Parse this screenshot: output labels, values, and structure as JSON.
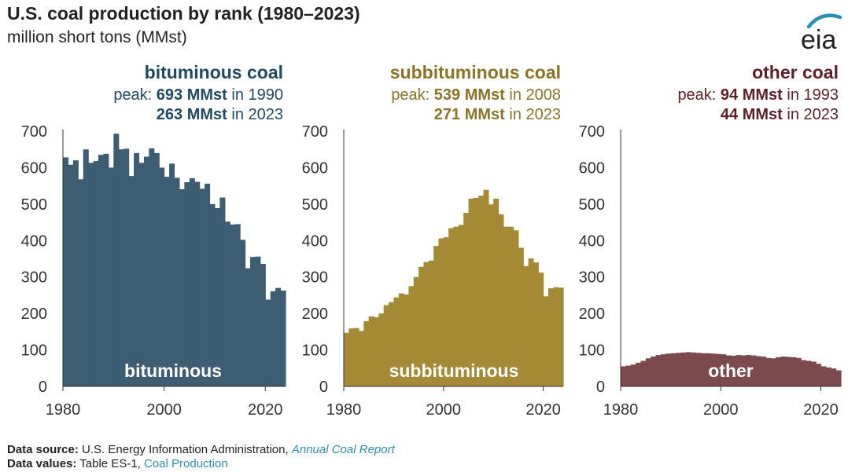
{
  "header": {
    "title": "U.S. coal production by rank (1980–2023)",
    "subtitle": "million short tons (MMst)",
    "logo_text": "eia"
  },
  "footer": {
    "source_label": "Data source:",
    "source_text": "U.S. Energy Information Administration,",
    "source_link": "Annual Coal Report",
    "values_label": "Data values:",
    "values_text": "Table ES-1,",
    "values_link": "Coal Production"
  },
  "colors": {
    "bituminous": "#3d5d73",
    "subbituminous": "#a58a35",
    "other": "#7b4a4c",
    "bituminous_text": "#1f4a63",
    "subbituminous_text": "#8c7424",
    "other_text": "#5c1f27",
    "axis": "#333333",
    "link": "#2a8fb5"
  },
  "chart_data": [
    {
      "type": "area",
      "series_name": "bituminous coal",
      "annotation_prefix": "peak:",
      "annotation_peak_value": "693 MMst",
      "annotation_peak_year": "in 1990",
      "annotation_latest_value": "263 MMst",
      "annotation_latest_year": "in 2023",
      "inner_label": "bituminous",
      "ylim": [
        0,
        700
      ],
      "yticks": [
        "0",
        "100",
        "200",
        "300",
        "400",
        "500",
        "600",
        "700"
      ],
      "xticks": [
        "1980",
        "2000",
        "2020"
      ],
      "x": [
        1980,
        1981,
        1982,
        1983,
        1984,
        1985,
        1986,
        1987,
        1988,
        1989,
        1990,
        1991,
        1992,
        1993,
        1994,
        1995,
        1996,
        1997,
        1998,
        1999,
        2000,
        2001,
        2002,
        2003,
        2004,
        2005,
        2006,
        2007,
        2008,
        2009,
        2010,
        2011,
        2012,
        2013,
        2014,
        2015,
        2016,
        2017,
        2018,
        2019,
        2020,
        2021,
        2022,
        2023
      ],
      "values": [
        628,
        608,
        620,
        568,
        650,
        613,
        618,
        635,
        638,
        600,
        693,
        650,
        652,
        577,
        640,
        613,
        630,
        653,
        640,
        600,
        575,
        611,
        572,
        541,
        560,
        571,
        561,
        542,
        556,
        500,
        489,
        518,
        452,
        444,
        445,
        402,
        324,
        355,
        356,
        336,
        238,
        261,
        270,
        263
      ]
    },
    {
      "type": "area",
      "series_name": "subbituminous coal",
      "annotation_prefix": "peak:",
      "annotation_peak_value": "539 MMst",
      "annotation_peak_year": "in 2008",
      "annotation_latest_value": "271 MMst",
      "annotation_latest_year": "in 2023",
      "inner_label": "subbituminous",
      "ylim": [
        0,
        700
      ],
      "yticks": [
        "0",
        "100",
        "200",
        "300",
        "400",
        "500",
        "600",
        "700"
      ],
      "xticks": [
        "1980",
        "2000",
        "2020"
      ],
      "x": [
        1980,
        1981,
        1982,
        1983,
        1984,
        1985,
        1986,
        1987,
        1988,
        1989,
        1990,
        1991,
        1992,
        1993,
        1994,
        1995,
        1996,
        1997,
        1998,
        1999,
        2000,
        2001,
        2002,
        2003,
        2004,
        2005,
        2006,
        2007,
        2008,
        2009,
        2010,
        2011,
        2012,
        2013,
        2014,
        2015,
        2016,
        2017,
        2018,
        2019,
        2020,
        2021,
        2022,
        2023
      ],
      "values": [
        147,
        159,
        160,
        152,
        179,
        192,
        190,
        200,
        223,
        231,
        244,
        255,
        252,
        275,
        300,
        328,
        341,
        345,
        385,
        406,
        409,
        434,
        438,
        443,
        476,
        515,
        517,
        523,
        539,
        499,
        515,
        472,
        438,
        438,
        428,
        380,
        330,
        351,
        340,
        312,
        247,
        269,
        272,
        271
      ]
    },
    {
      "type": "area",
      "series_name": "other coal",
      "annotation_prefix": "peak:",
      "annotation_peak_value": "94 MMst",
      "annotation_peak_year": "in 1993",
      "annotation_latest_value": "44 MMst",
      "annotation_latest_year": "in 2023",
      "inner_label": "other",
      "ylim": [
        0,
        700
      ],
      "yticks": [
        "0",
        "100",
        "200",
        "300",
        "400",
        "500",
        "600",
        "700"
      ],
      "xticks": [
        "1980",
        "2000",
        "2020"
      ],
      "x": [
        1980,
        1981,
        1982,
        1983,
        1984,
        1985,
        1986,
        1987,
        1988,
        1989,
        1990,
        1991,
        1992,
        1993,
        1994,
        1995,
        1996,
        1997,
        1998,
        1999,
        2000,
        2001,
        2002,
        2003,
        2004,
        2005,
        2006,
        2007,
        2008,
        2009,
        2010,
        2011,
        2012,
        2013,
        2014,
        2015,
        2016,
        2017,
        2018,
        2019,
        2020,
        2021,
        2022,
        2023
      ],
      "values": [
        55,
        57,
        60,
        65,
        70,
        77,
        82,
        86,
        88,
        90,
        91,
        92,
        93,
        94,
        93,
        92,
        91,
        91,
        90,
        89,
        88,
        85,
        84,
        86,
        85,
        86,
        85,
        83,
        82,
        78,
        77,
        80,
        82,
        81,
        80,
        78,
        72,
        70,
        68,
        62,
        55,
        52,
        49,
        44
      ]
    }
  ]
}
